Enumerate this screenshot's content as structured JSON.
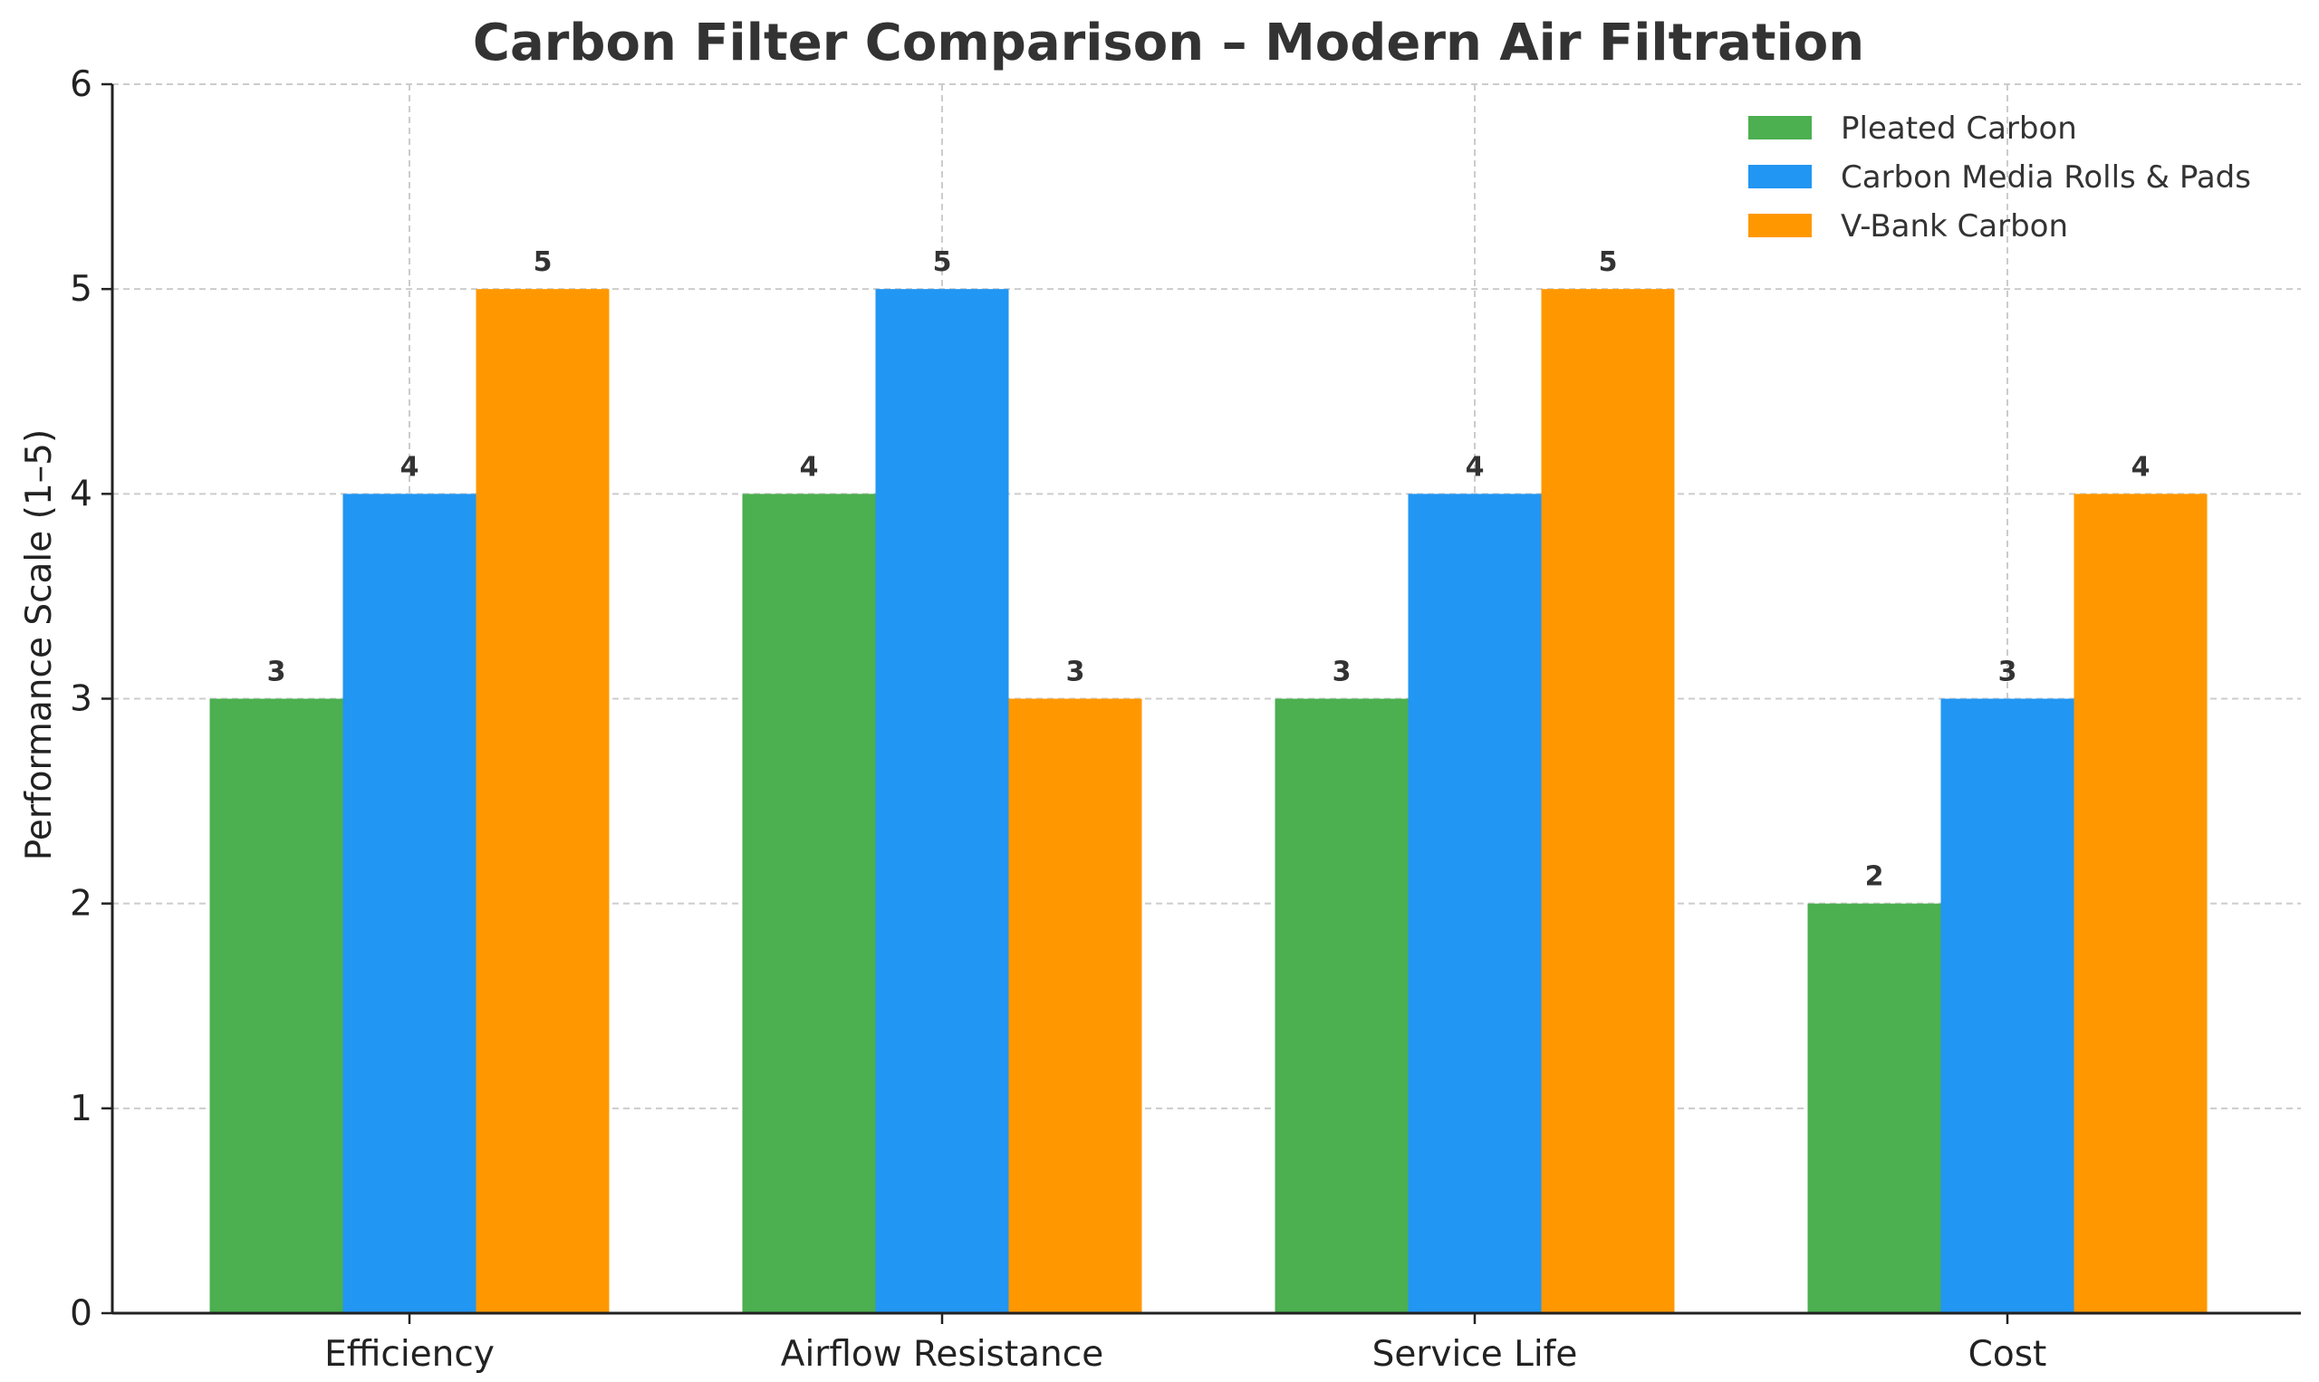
{
  "chart_data": {
    "type": "bar",
    "title": "Carbon Filter Comparison – Modern Air Filtration",
    "xlabel": "",
    "ylabel": "Performance Scale (1–5)",
    "ylim": [
      0,
      6
    ],
    "yticks": [
      0,
      1,
      2,
      3,
      4,
      5,
      6
    ],
    "grid": true,
    "legend_position": "top-right",
    "categories": [
      "Efficiency",
      "Airflow Resistance",
      "Service Life",
      "Cost"
    ],
    "series": [
      {
        "name": "Pleated Carbon",
        "color": "#4caf50",
        "values": [
          3,
          4,
          3,
          2
        ]
      },
      {
        "name": "Carbon Media Rolls & Pads",
        "color": "#2196f3",
        "values": [
          4,
          5,
          4,
          3
        ]
      },
      {
        "name": "V-Bank Carbon",
        "color": "#ff9800",
        "values": [
          5,
          3,
          5,
          4
        ]
      }
    ]
  }
}
